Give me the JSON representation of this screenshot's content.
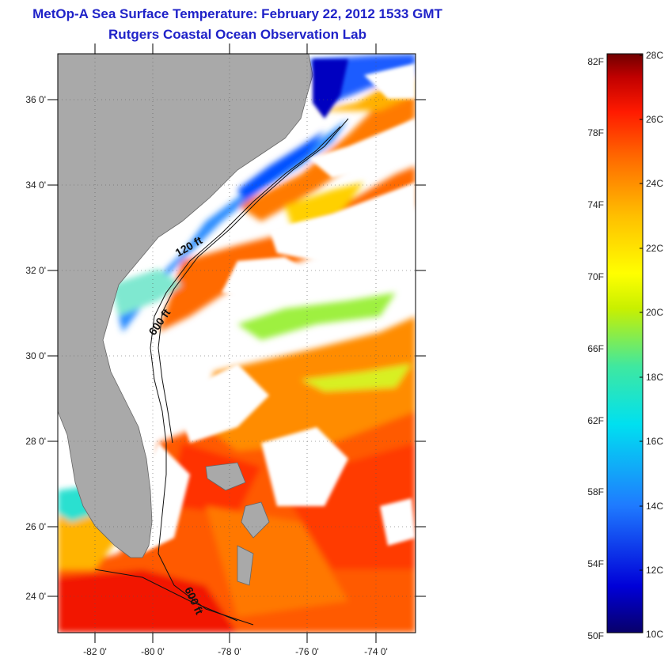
{
  "title": {
    "line1": "MetOp-A Sea Surface Temperature:  February 22, 2012 1533 GMT",
    "line2": "Rutgers Coastal Ocean Observation Lab"
  },
  "map": {
    "lat_labels": [
      "36 0'",
      "34 0'",
      "32 0'",
      "30 0'",
      "28 0'",
      "26 0'",
      "24 0'"
    ],
    "lon_labels": [
      "-82 0'",
      "-80 0'",
      "-78 0'",
      "-76 0'",
      "-74 0'"
    ],
    "contour_labels": [
      "120 ft",
      "600 ft",
      "600 ft"
    ],
    "colors": {
      "land": "#a9a9a9",
      "cloud": "#ffffff"
    }
  },
  "colorbar": {
    "fahrenheit": [
      "82F",
      "78F",
      "74F",
      "70F",
      "66F",
      "62F",
      "58F",
      "54F",
      "50F"
    ],
    "celsius": [
      "28C",
      "26C",
      "24C",
      "22C",
      "20C",
      "18C",
      "16C",
      "14C",
      "12C",
      "10C"
    ]
  }
}
